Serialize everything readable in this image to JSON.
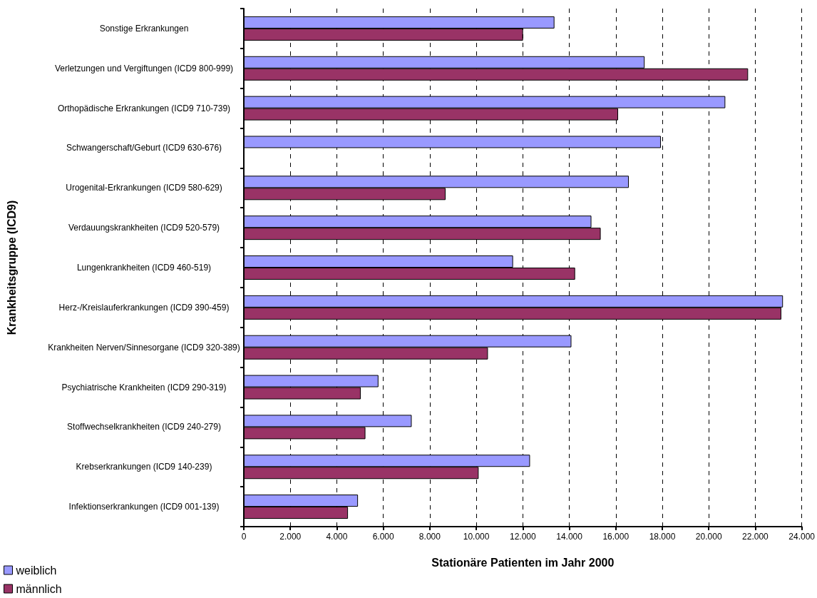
{
  "chart_data": {
    "type": "bar",
    "orientation": "horizontal",
    "xlabel": "Stationäre Patienten im Jahr 2000",
    "ylabel": "Krankheitsgruppe (ICD9)",
    "categories": [
      "Sonstige Erkrankungen",
      "Verletzungen und Vergiftungen (ICD9 800-999)",
      "Orthopädische Erkrankungen (ICD9 710-739)",
      "Schwangerschaft/Geburt (ICD9 630-676)",
      "Urogenital-Erkrankungen (ICD9 580-629)",
      "Verdauungskrankheiten (ICD9 520-579)",
      "Lungenkrankheiten (ICD9 460-519)",
      "Herz-/Kreislauferkrankungen (ICD9 390-459)",
      "Krankheiten Nerven/Sinnesorgane (ICD9 320-389)",
      "Psychiatrische Krankheiten (ICD9 290-319)",
      "Stoffwechselkrankheiten (ICD9 240-279)",
      "Krebserkrankungen (ICD9 140-239)",
      "Infektionserkrankungen (ICD9 001-139)"
    ],
    "series": [
      {
        "name": "weiblich",
        "color": "#9999ff",
        "values": [
          13360,
          17240,
          20710,
          17940,
          16560,
          14950,
          11580,
          23190,
          14090,
          5790,
          7220,
          12310,
          4910
        ]
      },
      {
        "name": "männlich",
        "color": "#993366",
        "values": [
          12010,
          21690,
          16100,
          null,
          8680,
          15350,
          14250,
          23120,
          10500,
          5030,
          5230,
          10100,
          4480
        ]
      }
    ],
    "xlim": [
      0,
      24000
    ],
    "xticks": [
      0,
      {
        "value": 2000,
        "label": "2.000"
      },
      {
        "value": 4000,
        "label": "4.000"
      },
      {
        "value": 6000,
        "label": "6.000"
      },
      {
        "value": 8000,
        "label": "8.000"
      },
      {
        "value": 10000,
        "label": "10.000"
      },
      {
        "value": 12000,
        "label": "12.000"
      },
      {
        "value": 14000,
        "label": "14.000"
      },
      {
        "value": 16000,
        "label": "16.000"
      },
      {
        "value": 18000,
        "label": "18.000"
      },
      {
        "value": 20000,
        "label": "20.000"
      },
      {
        "value": 22000,
        "label": "22.000"
      },
      {
        "value": 24000,
        "label": "24.000"
      }
    ],
    "grid": "x",
    "legend": "bottom left"
  }
}
